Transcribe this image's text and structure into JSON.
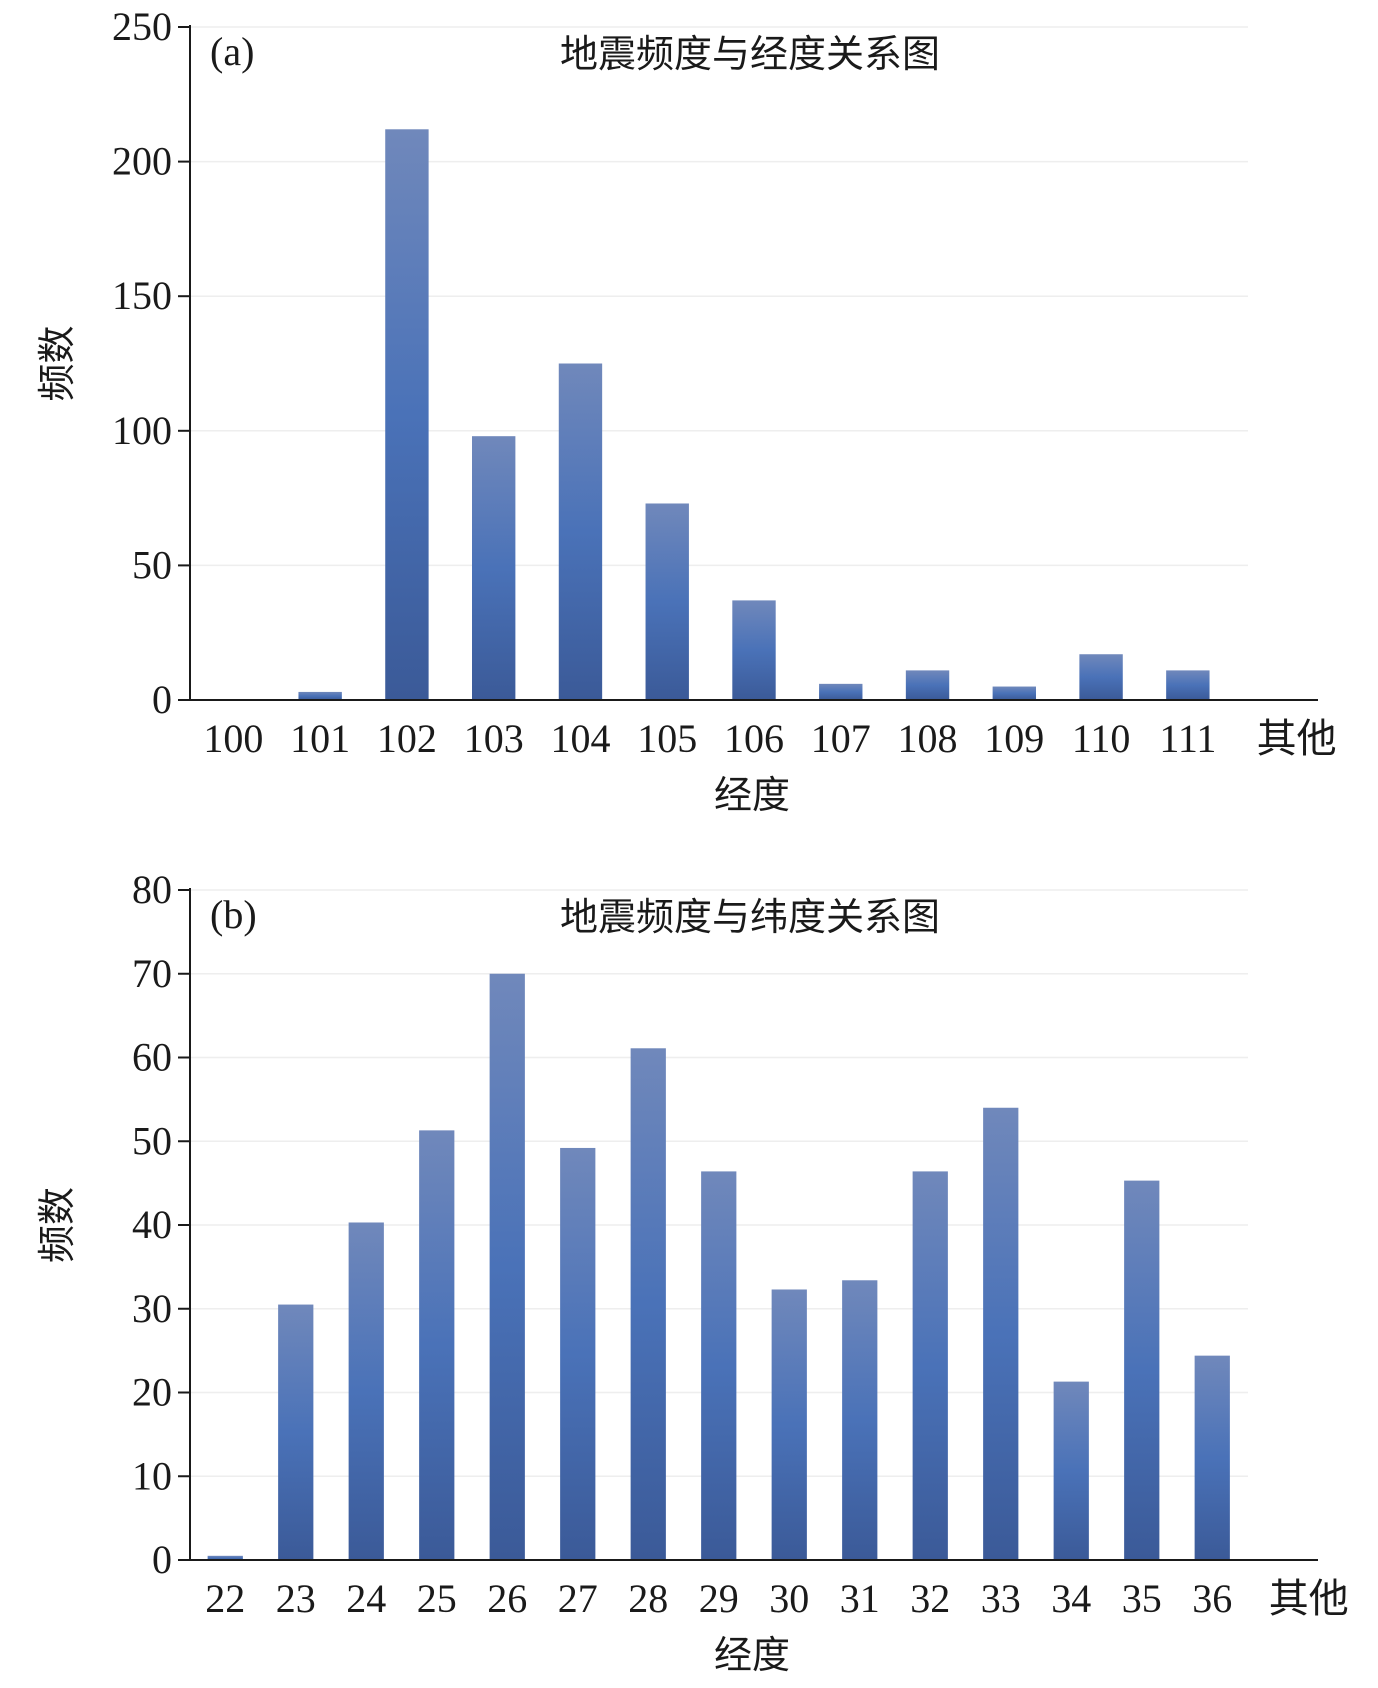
{
  "chart_data": [
    {
      "type": "bar",
      "panel": "(a)",
      "title": "地震频度与经度关系图",
      "xlabel": "经度",
      "ylabel": "频数",
      "categories": [
        "100",
        "101",
        "102",
        "103",
        "104",
        "105",
        "106",
        "107",
        "108",
        "109",
        "110",
        "111",
        "其他"
      ],
      "values": [
        0,
        3,
        212,
        98,
        125,
        73,
        37,
        6,
        11,
        5,
        17,
        11,
        0
      ],
      "ylim": [
        0,
        250
      ],
      "yticks": [
        0,
        50,
        100,
        150,
        200,
        250
      ],
      "grid": true,
      "bar_color": "#4a72b8"
    },
    {
      "type": "bar",
      "panel": "(b)",
      "title": "地震频度与纬度关系图",
      "xlabel": "经度",
      "ylabel": "频数",
      "categories": [
        "22",
        "23",
        "24",
        "25",
        "26",
        "27",
        "28",
        "29",
        "30",
        "31",
        "32",
        "33",
        "34",
        "35",
        "36",
        "其他"
      ],
      "values": [
        0.5,
        30.5,
        40.3,
        51.3,
        70,
        49.2,
        61.1,
        46.4,
        32.3,
        33.4,
        46.4,
        54,
        21.3,
        45.3,
        24.4,
        0
      ],
      "ylim": [
        0,
        80
      ],
      "yticks": [
        0,
        10,
        20,
        30,
        40,
        50,
        60,
        70,
        80
      ],
      "grid": true,
      "bar_color": "#4a72b8"
    }
  ]
}
